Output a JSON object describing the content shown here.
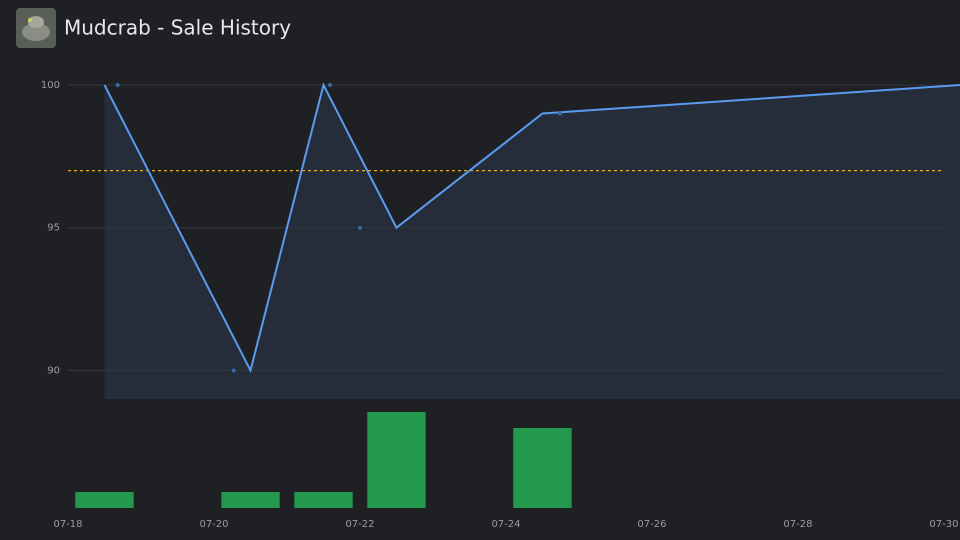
{
  "header": {
    "title": "Mudcrab - Sale History"
  },
  "chart_data": [
    {
      "type": "line",
      "x": [
        18.5,
        20.5,
        21.5,
        22.5,
        24.5,
        30.22
      ],
      "values": [
        100,
        90,
        100,
        95,
        99,
        100
      ],
      "color": "#5b9bef",
      "area_color": "#262d3a",
      "points": {
        "x": [
          18.68,
          20.27,
          21.59,
          22.0,
          24.74
        ],
        "values": [
          100,
          90,
          100,
          95,
          99
        ],
        "color": "#3d6aa8"
      },
      "reference_line": 97,
      "reference_color": "#e0b020",
      "xlim": [
        18,
        30.22
      ],
      "ylim": [
        89,
        100.98
      ],
      "yticks": [
        90,
        95,
        100
      ],
      "grid": true
    },
    {
      "type": "bar",
      "x": [
        18.5,
        20.5,
        21.5,
        22.5,
        24.5
      ],
      "values": [
        1,
        1,
        1,
        6,
        5
      ],
      "color": "#22994d",
      "bar_width": 0.8,
      "xlim": [
        18,
        30.22
      ],
      "ylim": [
        0,
        6.25
      ],
      "xticks": [
        {
          "value": 18,
          "label": "07-18"
        },
        {
          "value": 20,
          "label": "07-20"
        },
        {
          "value": 22,
          "label": "07-22"
        },
        {
          "value": 24,
          "label": "07-24"
        },
        {
          "value": 26,
          "label": "07-26"
        },
        {
          "value": 28,
          "label": "07-28"
        },
        {
          "value": 30,
          "label": "07-30"
        }
      ]
    }
  ]
}
